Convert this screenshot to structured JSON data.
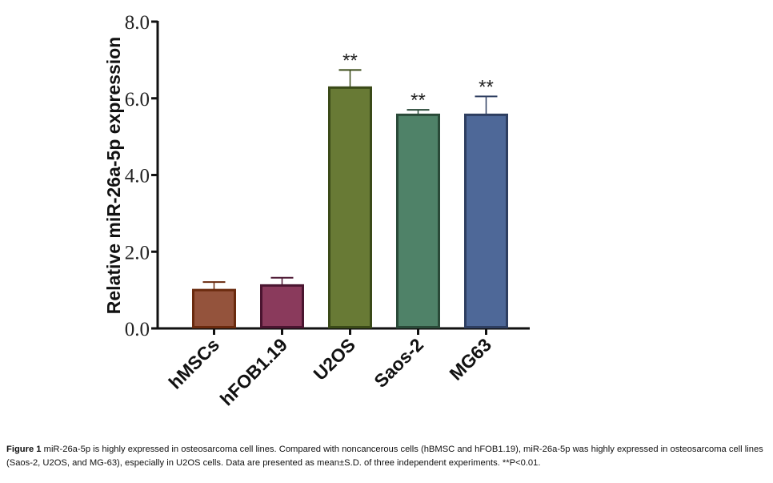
{
  "chart_data": {
    "type": "bar",
    "title": "",
    "xlabel": "",
    "ylabel": "Relative miR-26a-5p  expression",
    "ylim": [
      0,
      8
    ],
    "yticks": [
      "0.0",
      "2.0",
      "4.0",
      "6.0",
      "8.0"
    ],
    "ytick_values": [
      0,
      2,
      4,
      6,
      8
    ],
    "grid": false,
    "categories": [
      "hMSCs",
      "hFOB1.19",
      "U2OS",
      "Saos-2",
      "MG63"
    ],
    "values": [
      1.0,
      1.12,
      6.28,
      5.57,
      5.57
    ],
    "error_upper": [
      1.21,
      1.32,
      6.74,
      5.7,
      6.05
    ],
    "annotations": [
      "",
      "",
      "**",
      "**",
      "**"
    ],
    "colors": [
      "#94533c",
      "#8a3a5c",
      "#687a35",
      "#4f8268",
      "#4e6898"
    ],
    "edge_colors": [
      "#6a2a0e",
      "#4a1530",
      "#3a4a18",
      "#2a4a38",
      "#2e3e60"
    ]
  },
  "caption": {
    "label": "Figure 1",
    "text": " miR-26a-5p is highly expressed in osteosarcoma cell lines. Compared with noncancerous cells (hBMSC and hFOB1.19), miR-26a-5p was highly expressed in osteosarcoma cell lines (Saos-2, U2OS, and MG-63), especially in U2OS cells. Data are presented as mean±S.D. of three independent experiments. **P<0.01."
  }
}
